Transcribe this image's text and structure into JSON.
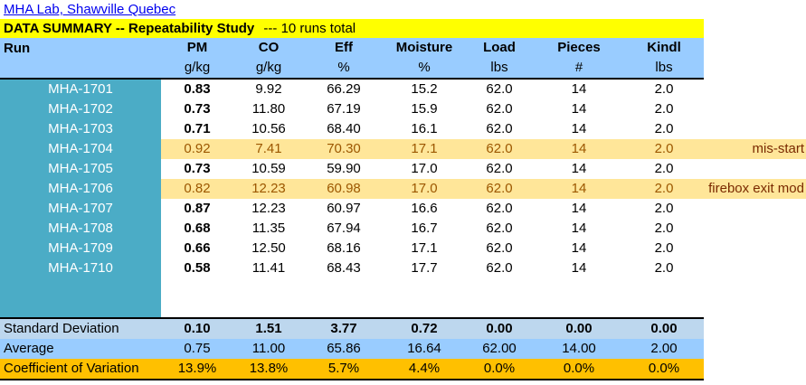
{
  "link_text": "MHA Lab, Shawville Quebec",
  "title": {
    "main": "DATA SUMMARY -- Repeatability Study",
    "suffix": "--- 10 runs total"
  },
  "header": {
    "run": "Run",
    "pm": "PM",
    "co": "CO",
    "eff": "Eff",
    "moisture": "Moisture",
    "load": "Load",
    "pieces": "Pieces",
    "kindl": "Kindl"
  },
  "units": {
    "pm": "g/kg",
    "co": "g/kg",
    "eff": "%",
    "moisture": "%",
    "load": "lbs",
    "pieces": "#",
    "kindl": "lbs"
  },
  "rows": [
    {
      "run": "MHA-1701",
      "pm": "0.83",
      "co": "9.92",
      "eff": "66.29",
      "moisture": "15.2",
      "load": "62.0",
      "pieces": "14",
      "kindl": "2.0",
      "note": ""
    },
    {
      "run": "MHA-1702",
      "pm": "0.73",
      "co": "11.80",
      "eff": "67.19",
      "moisture": "15.9",
      "load": "62.0",
      "pieces": "14",
      "kindl": "2.0",
      "note": ""
    },
    {
      "run": "MHA-1703",
      "pm": "0.71",
      "co": "10.56",
      "eff": "68.40",
      "moisture": "16.1",
      "load": "62.0",
      "pieces": "14",
      "kindl": "2.0",
      "note": ""
    },
    {
      "run": "MHA-1704",
      "pm": "0.92",
      "co": "7.41",
      "eff": "70.30",
      "moisture": "17.1",
      "load": "62.0",
      "pieces": "14",
      "kindl": "2.0",
      "note": "mis-start"
    },
    {
      "run": "MHA-1705",
      "pm": "0.73",
      "co": "10.59",
      "eff": "59.90",
      "moisture": "17.0",
      "load": "62.0",
      "pieces": "14",
      "kindl": "2.0",
      "note": ""
    },
    {
      "run": "MHA-1706",
      "pm": "0.82",
      "co": "12.23",
      "eff": "60.98",
      "moisture": "17.0",
      "load": "62.0",
      "pieces": "14",
      "kindl": "2.0",
      "note": "firebox exit mod"
    },
    {
      "run": "MHA-1707",
      "pm": "0.87",
      "co": "12.23",
      "eff": "60.97",
      "moisture": "16.6",
      "load": "62.0",
      "pieces": "14",
      "kindl": "2.0",
      "note": ""
    },
    {
      "run": "MHA-1708",
      "pm": "0.68",
      "co": "11.35",
      "eff": "67.94",
      "moisture": "16.7",
      "load": "62.0",
      "pieces": "14",
      "kindl": "2.0",
      "note": ""
    },
    {
      "run": "MHA-1709",
      "pm": "0.66",
      "co": "12.50",
      "eff": "68.16",
      "moisture": "17.1",
      "load": "62.0",
      "pieces": "14",
      "kindl": "2.0",
      "note": ""
    },
    {
      "run": "MHA-1710",
      "pm": "0.58",
      "co": "11.41",
      "eff": "68.43",
      "moisture": "17.7",
      "load": "62.0",
      "pieces": "14",
      "kindl": "2.0",
      "note": ""
    }
  ],
  "stats": {
    "stdev": {
      "label": "Standard Deviation",
      "pm": "0.10",
      "co": "1.51",
      "eff": "3.77",
      "moisture": "0.72",
      "load": "0.00",
      "pieces": "0.00",
      "kindl": "0.00"
    },
    "avg": {
      "label": "Average",
      "pm": "0.75",
      "co": "11.00",
      "eff": "65.86",
      "moisture": "16.64",
      "load": "62.00",
      "pieces": "14.00",
      "kindl": "2.00"
    },
    "cov": {
      "label": "Coefficient of Variation",
      "pm": "13.9%",
      "co": "13.8%",
      "eff": "5.7%",
      "moisture": "4.4%",
      "load": "0.0%",
      "pieces": "0.0%",
      "kindl": "0.0%"
    }
  },
  "colors": {
    "title_bg": "#ffff00",
    "header_bg": "#99ccff",
    "run_col_bg": "#4bacc6",
    "flagged_row_bg": "#ffe699",
    "stdev_bg": "#bdd7ee",
    "avg_bg": "#99ccff",
    "cov_bg": "#ffc000",
    "note_text": "#7a2a00",
    "flagged_text": "#9c5700"
  }
}
